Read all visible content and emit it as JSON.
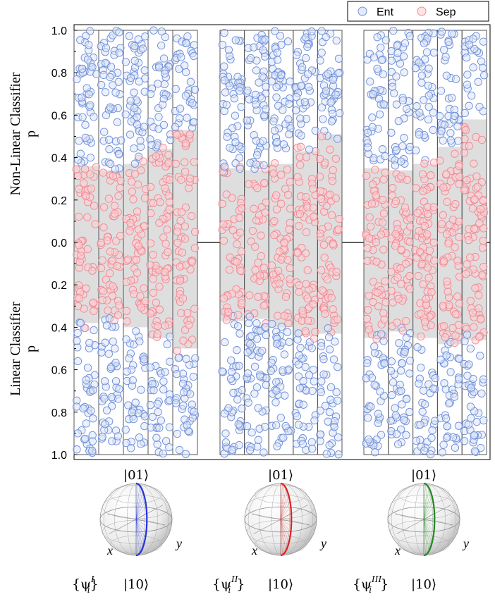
{
  "chart_data": {
    "type": "scatter",
    "title": "",
    "ylabel_top": "Non-Linear Classifier",
    "ylabel_top_sub": "p",
    "ylabel_bottom": "Linear Classifier",
    "ylabel_bottom_sub": "p",
    "y_ticks_top": [
      "1.0",
      "0.8",
      "0.6",
      "0.4",
      "0.2",
      "0.0"
    ],
    "y_ticks_bottom": [
      "0.2",
      "0.4",
      "0.6",
      "0.8",
      "1.0"
    ],
    "ylim": [
      0,
      1
    ],
    "legend": {
      "placement": "top-right",
      "entries": [
        {
          "label": "Ent",
          "color": "#6f8fd8"
        },
        {
          "label": "Sep",
          "color": "#f08a94"
        }
      ]
    },
    "colors": {
      "ent": "#6f8fd8",
      "sep": "#f08a94",
      "band": "#dedede",
      "blue_curve": "#2233dd",
      "red_curve": "#dd2222",
      "green_curve": "#228822"
    },
    "groups": [
      {
        "id": "I",
        "strips": 5,
        "points_per_strip_half": 70,
        "nonlinear_boundary": [
          0.36,
          0.34,
          0.37,
          0.44,
          0.53
        ],
        "linear_boundary": [
          0.38,
          0.36,
          0.4,
          0.45,
          0.5
        ]
      },
      {
        "id": "II",
        "strips": 5,
        "points_per_strip_half": 70,
        "nonlinear_boundary": [
          0.35,
          0.34,
          0.37,
          0.43,
          0.51
        ],
        "linear_boundary": [
          0.37,
          0.36,
          0.4,
          0.44,
          0.43
        ]
      },
      {
        "id": "III",
        "strips": 5,
        "points_per_strip_half": 70,
        "nonlinear_boundary": [
          0.35,
          0.34,
          0.37,
          0.45,
          0.58
        ],
        "linear_boundary": [
          0.45,
          0.42,
          0.45,
          0.48,
          0.46
        ]
      }
    ]
  },
  "bloch": [
    {
      "top_label": "|01⟩",
      "bottom_label": "|10⟩",
      "x_label": "x",
      "y_label": "y",
      "set_label": "{ψ",
      "set_sub": "i",
      "set_sup": "I",
      "curve_color": "#2233dd"
    },
    {
      "top_label": "|01⟩",
      "bottom_label": "|10⟩",
      "x_label": "x",
      "y_label": "y",
      "set_label": "{ψ",
      "set_sub": "i",
      "set_sup": "II",
      "curve_color": "#dd2222"
    },
    {
      "top_label": "|01⟩",
      "bottom_label": "|10⟩",
      "x_label": "x",
      "y_label": "y",
      "set_label": "{ψ",
      "set_sub": "i",
      "set_sup": "III",
      "curve_color": "#228822"
    }
  ]
}
